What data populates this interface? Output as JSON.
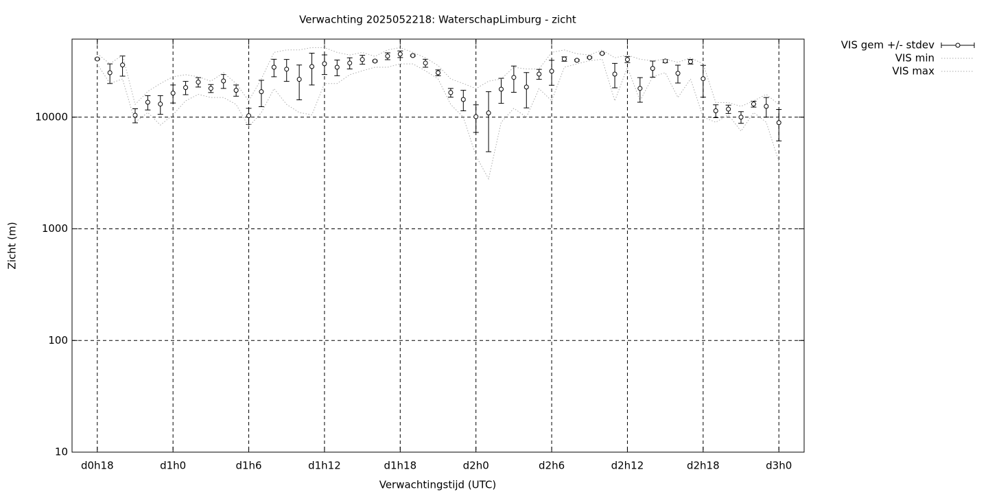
{
  "chart_data": {
    "type": "errorbar",
    "title": "Verwachting 2025052218: WaterschapLimburg - zicht",
    "x_label": "Verwachtingstijd (UTC)",
    "y_label": "Zicht (m)",
    "x": [
      0,
      1,
      2,
      3,
      4,
      5,
      6,
      7,
      8,
      9,
      10,
      11,
      12,
      13,
      14,
      15,
      16,
      17,
      18,
      19,
      20,
      21,
      22,
      23,
      24,
      25,
      26,
      27,
      28,
      29,
      30,
      31,
      32,
      33,
      34,
      35,
      36,
      37,
      38,
      39,
      40,
      41,
      42,
      43,
      44,
      45,
      46,
      47,
      48,
      49,
      50,
      51,
      52,
      53,
      54
    ],
    "xlim": [
      -2,
      56
    ],
    "xticks": [
      {
        "value": 0,
        "label": "d0h18"
      },
      {
        "value": 6,
        "label": "d1h0"
      },
      {
        "value": 12,
        "label": "d1h6"
      },
      {
        "value": 18,
        "label": "d1h12"
      },
      {
        "value": 24,
        "label": "d1h18"
      },
      {
        "value": 30,
        "label": "d2h0"
      },
      {
        "value": 36,
        "label": "d2h6"
      },
      {
        "value": 42,
        "label": "d2h12"
      },
      {
        "value": 48,
        "label": "d2h18"
      },
      {
        "value": 54,
        "label": "d3h0"
      }
    ],
    "ylim": [
      10,
      50000
    ],
    "yticks": [
      10,
      100,
      1000,
      10000
    ],
    "log_y": true,
    "grid": true,
    "legend": "outside-top-right",
    "series": [
      {
        "name": "VIS gem +/- stdev",
        "color": "#000000",
        "values": [
          33200,
          25000,
          29300,
          10400,
          13600,
          13100,
          16400,
          18400,
          20600,
          18100,
          21100,
          17400,
          10300,
          16900,
          28000,
          26900,
          21800,
          28400,
          30100,
          28000,
          30500,
          32800,
          31800,
          35200,
          36700,
          35600,
          30500,
          25000,
          16600,
          14400,
          10100,
          10900,
          17800,
          22700,
          18600,
          24300,
          25800,
          33200,
          32300,
          34200,
          37200,
          24300,
          32800,
          18100,
          27300,
          31800,
          24700,
          31400,
          22100,
          11400,
          11800,
          10000,
          13100,
          12500,
          8930
        ],
        "errors": [
          500,
          5000,
          6000,
          1500,
          2000,
          2500,
          3000,
          2500,
          2000,
          1500,
          3000,
          2000,
          1700,
          4500,
          5000,
          6000,
          7500,
          9000,
          6000,
          4500,
          3500,
          3000,
          500,
          2500,
          2500,
          500,
          2500,
          1500,
          1500,
          3000,
          2800,
          6000,
          4500,
          6000,
          6500,
          2500,
          6500,
          1500,
          500,
          500,
          500,
          6000,
          2000,
          4500,
          4500,
          1000,
          4500,
          1500,
          7000,
          1500,
          1000,
          1200,
          800,
          2500,
          2800
        ]
      },
      {
        "name": "VIS min",
        "color": "#aaaaaa",
        "values": [
          30000,
          20000,
          22000,
          9000,
          11000,
          8500,
          10500,
          14000,
          16000,
          15000,
          15000,
          13000,
          8200,
          11000,
          18000,
          13000,
          11000,
          10500,
          20000,
          20000,
          24000,
          26000,
          28000,
          28000,
          30000,
          30000,
          26000,
          22000,
          13000,
          10000,
          4500,
          2800,
          9000,
          12000,
          10000,
          18000,
          14000,
          28000,
          30000,
          32000,
          33000,
          14000,
          28000,
          14000,
          23000,
          25000,
          15000,
          22000,
          10000,
          9000,
          10500,
          7500,
          11000,
          9000,
          4000
        ]
      },
      {
        "name": "VIS max",
        "color": "#aaaaaa",
        "values": [
          37000,
          30000,
          36000,
          13000,
          17000,
          20000,
          23000,
          24000,
          23000,
          21000,
          25000,
          20000,
          14000,
          22000,
          38000,
          40000,
          40000,
          42000,
          42000,
          38000,
          36000,
          38000,
          35000,
          40000,
          42000,
          38000,
          34000,
          29000,
          22000,
          20000,
          18000,
          21000,
          22000,
          28000,
          27000,
          27000,
          38000,
          40000,
          37000,
          36000,
          40000,
          34000,
          36000,
          33000,
          32000,
          33000,
          31000,
          34000,
          30000,
          13500,
          13500,
          12500,
          14000,
          16000,
          13000
        ]
      }
    ]
  }
}
